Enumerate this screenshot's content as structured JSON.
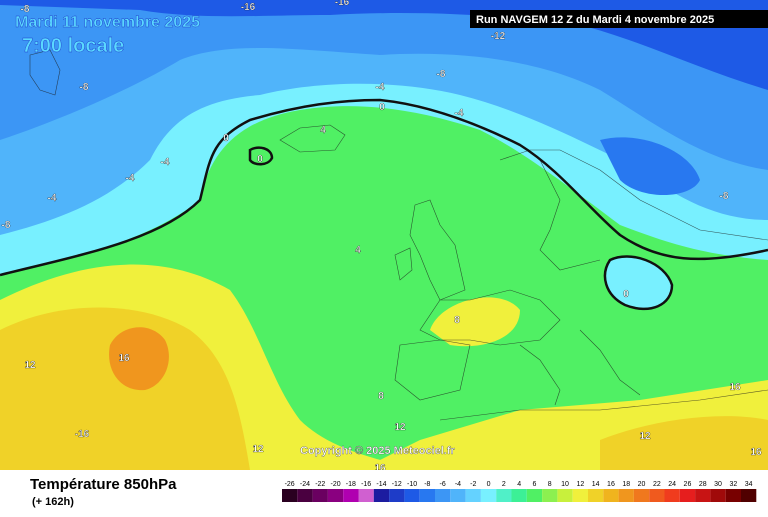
{
  "header": {
    "date": "Mardi 11 novembre 2025",
    "time": "7:00 locale",
    "run": "Run NAVGEM 12 Z du Mardi 4 novembre 2025"
  },
  "map": {
    "copyright": "Copyright © 2025 Meteociel.fr",
    "contour_labels": [
      -8,
      -16,
      -16,
      -12,
      -8,
      -4,
      0,
      -4,
      4,
      0,
      0,
      -8,
      -4,
      -4,
      -4,
      -8,
      4,
      -8,
      0,
      8,
      12,
      16,
      -16,
      8,
      12,
      12,
      12,
      16,
      16,
      16
    ]
  },
  "footer": {
    "title": "Température 850hPa",
    "lead": "(+ 162h)"
  },
  "legend": {
    "ticks": [
      -26,
      -24,
      -22,
      -20,
      -18,
      -16,
      -14,
      -12,
      -10,
      -8,
      -6,
      -4,
      -2,
      0,
      2,
      4,
      6,
      8,
      10,
      12,
      14,
      16,
      18,
      20,
      22,
      24,
      26,
      28,
      30,
      32,
      34
    ],
    "colors": [
      "#2a0020",
      "#4a0040",
      "#6a0060",
      "#8a0080",
      "#b000b0",
      "#d060d0",
      "#1c1ca0",
      "#1e3cc8",
      "#1e5ae6",
      "#2878f0",
      "#3c96f5",
      "#50b4fa",
      "#64d2ff",
      "#78f0ff",
      "#50f0c8",
      "#3cf096",
      "#50f064",
      "#8cf050",
      "#c8f03c",
      "#f0f03c",
      "#f0d228",
      "#f0b41e",
      "#f0961e",
      "#f0781e",
      "#f05a1e",
      "#f03c1e",
      "#e61e1e",
      "#c81414",
      "#a00a0a",
      "#780000",
      "#500000"
    ]
  }
}
